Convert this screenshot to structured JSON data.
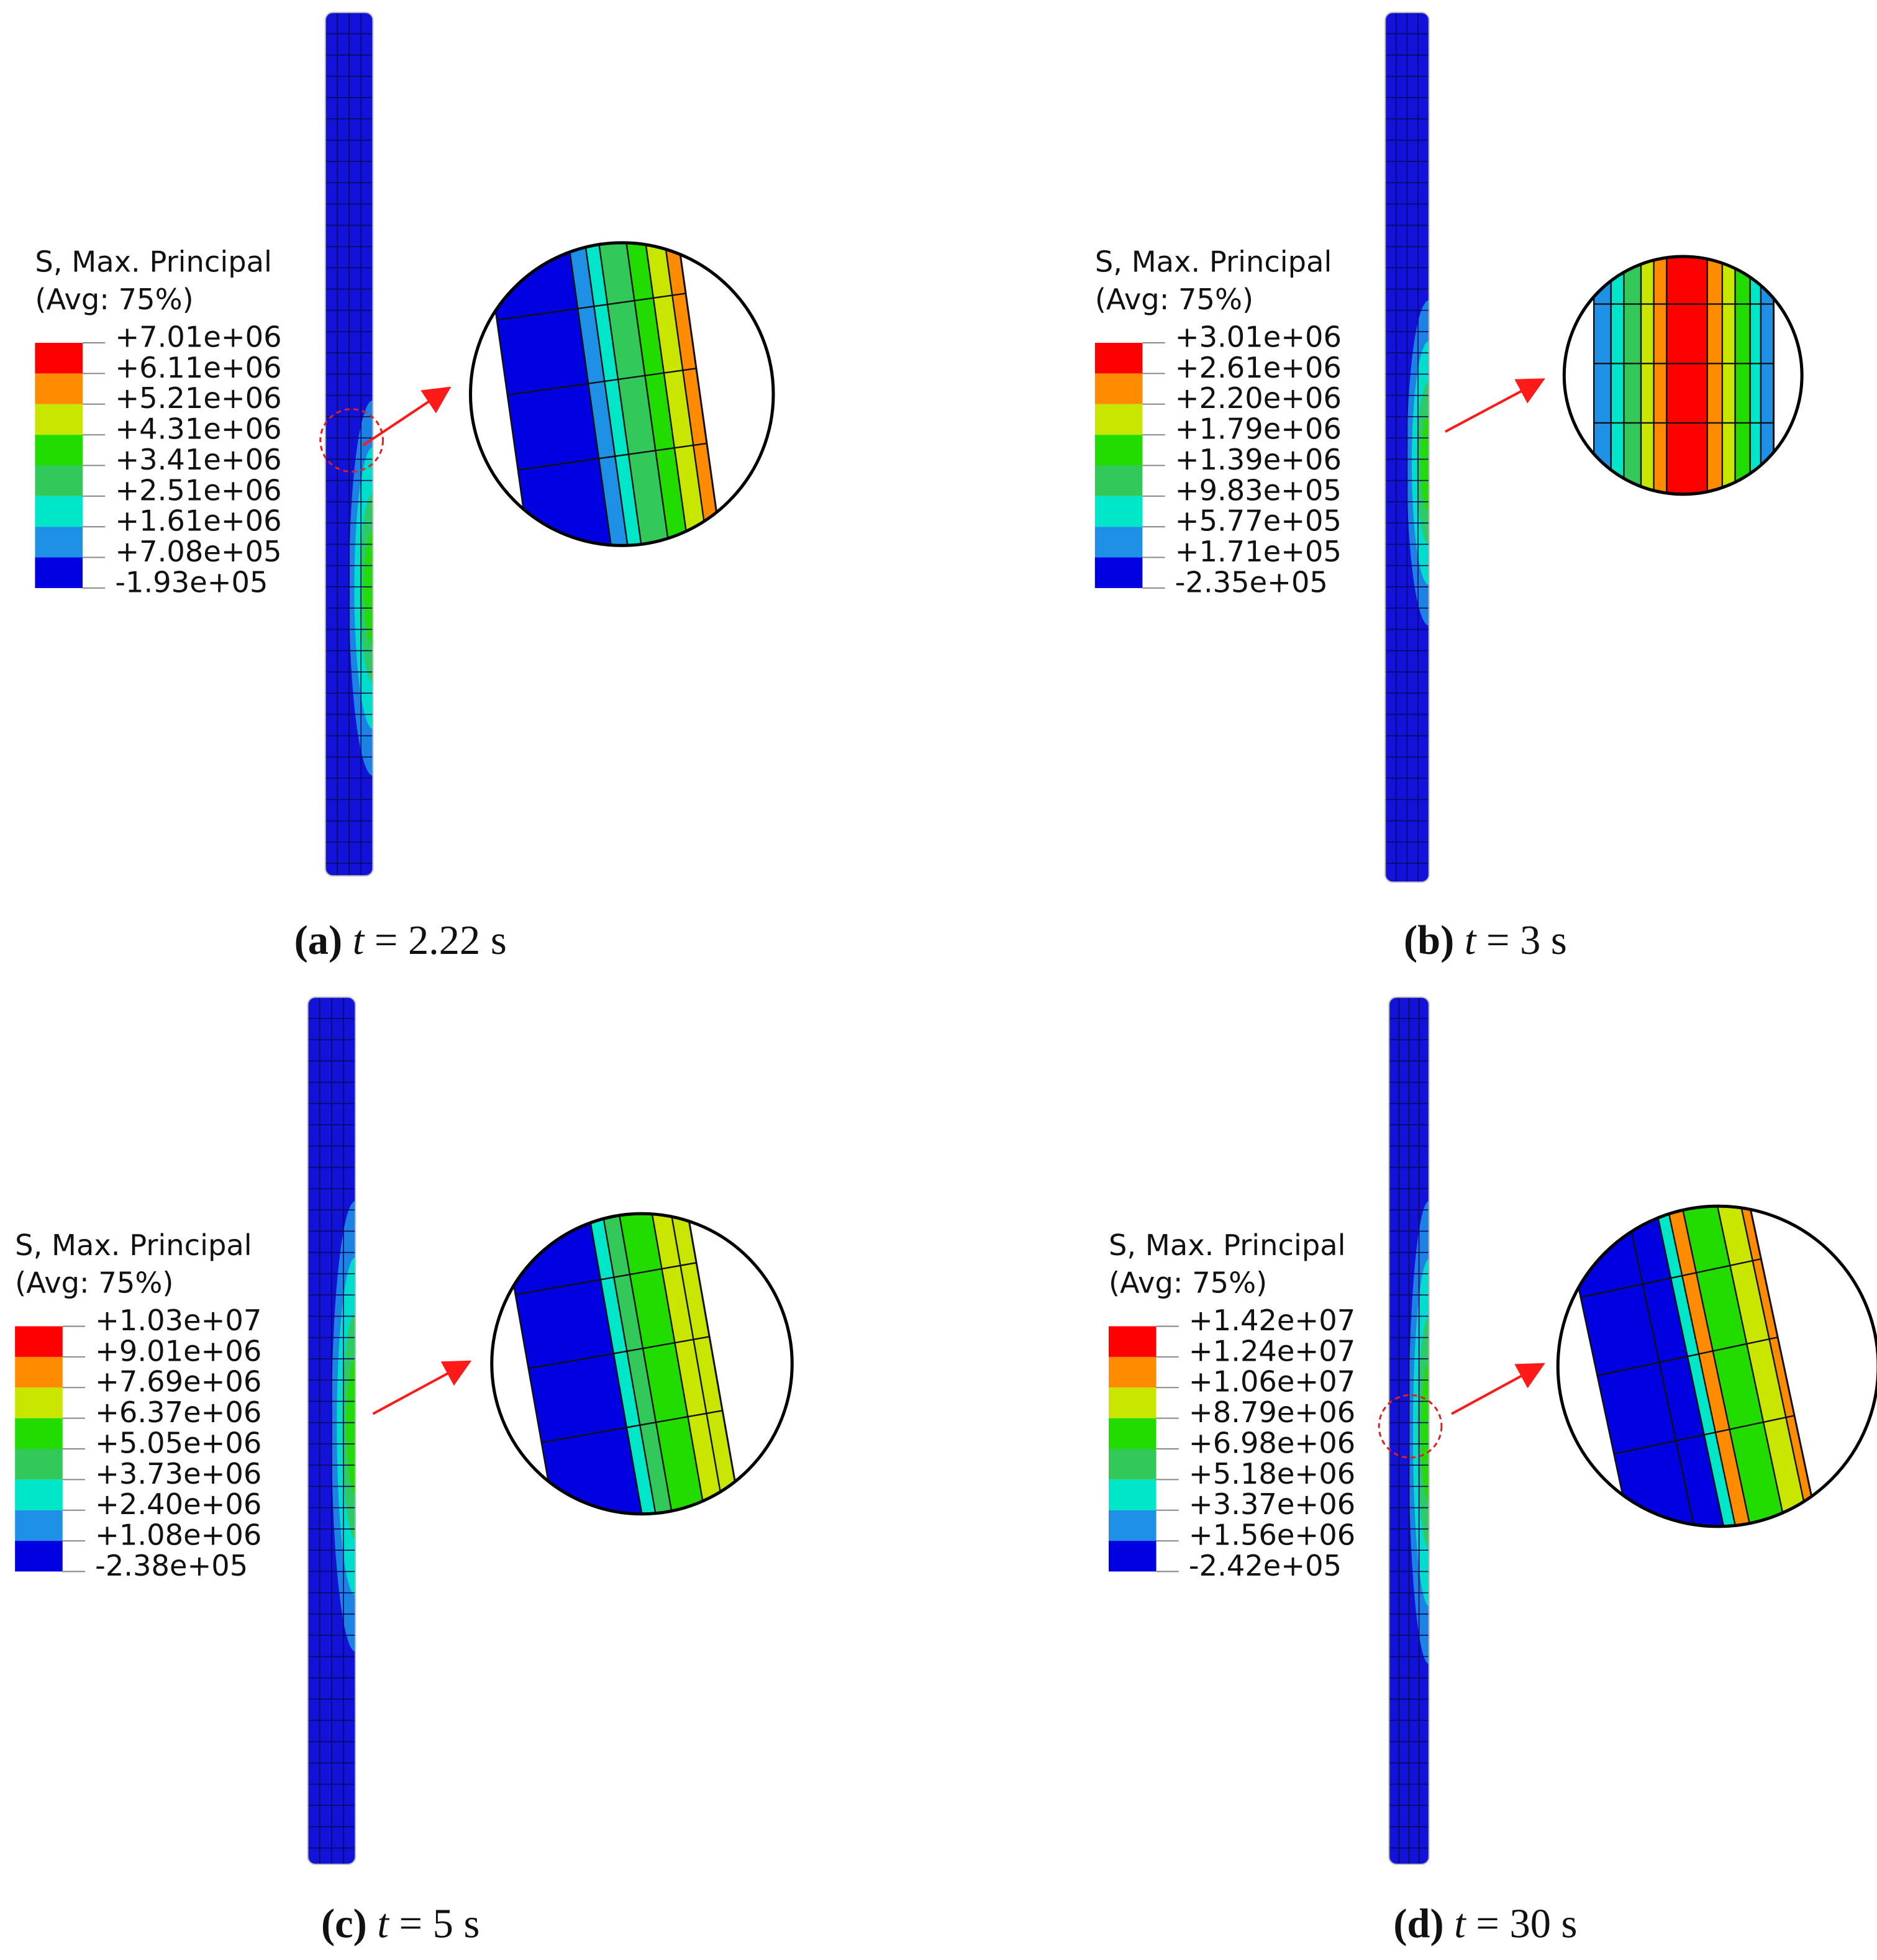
{
  "legend_colors": [
    "#ff0000",
    "#ff8c00",
    "#c8e600",
    "#22dc00",
    "#33c85a",
    "#00e6c8",
    "#1e90e6",
    "#0000e0"
  ],
  "panels": [
    {
      "legend_title": "S, Max. Principal",
      "legend_subtitle": "(Avg: 75%)",
      "legend_labels": [
        "+7.01e+06",
        "+6.11e+06",
        "+5.21e+06",
        "+4.31e+06",
        "+3.41e+06",
        "+2.51e+06",
        "+1.61e+06",
        "+7.08e+05",
        "-1.93e+05"
      ],
      "caption_label": "(a)",
      "caption_var": "t",
      "caption_value": "= 2.22 s"
    },
    {
      "legend_title": "S, Max. Principal",
      "legend_subtitle": "(Avg: 75%)",
      "legend_labels": [
        "+3.01e+06",
        "+2.61e+06",
        "+2.20e+06",
        "+1.79e+06",
        "+1.39e+06",
        "+9.83e+05",
        "+5.77e+05",
        "+1.71e+05",
        "-2.35e+05"
      ],
      "caption_label": "(b)",
      "caption_var": "t",
      "caption_value": "= 3 s"
    },
    {
      "legend_title": "S, Max. Principal",
      "legend_subtitle": "(Avg: 75%)",
      "legend_labels": [
        "+1.03e+07",
        "+9.01e+06",
        "+7.69e+06",
        "+6.37e+06",
        "+5.05e+06",
        "+3.73e+06",
        "+2.40e+06",
        "+1.08e+06",
        "-2.38e+05"
      ],
      "caption_label": "(c)",
      "caption_var": "t",
      "caption_value": "= 5 s"
    },
    {
      "legend_title": "S, Max. Principal",
      "legend_subtitle": "(Avg: 75%)",
      "legend_labels": [
        "+1.42e+07",
        "+1.24e+07",
        "+1.06e+07",
        "+8.79e+06",
        "+6.98e+06",
        "+5.18e+06",
        "+3.37e+06",
        "+1.56e+06",
        "-2.42e+05"
      ],
      "caption_label": "(d)",
      "caption_var": "t",
      "caption_value": "= 30 s"
    }
  ]
}
